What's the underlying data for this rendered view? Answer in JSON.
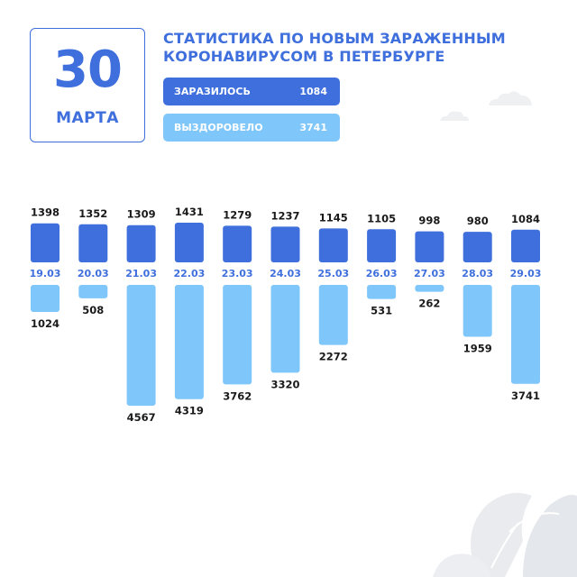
{
  "header": {
    "day": "30",
    "month": "МАРТА",
    "title_line1": "СТАТИСТИКА ПО НОВЫМ ЗАРАЖЕННЫМ",
    "title_line2": "КОРОНАВИРУСОМ В ПЕТЕРБУРГЕ"
  },
  "legend": {
    "infected_label": "ЗАРАЗИЛОСЬ",
    "infected_value": "1084",
    "recovered_label": "ВЫЗДОРОВЕЛО",
    "recovered_value": "3741"
  },
  "colors": {
    "infected": "#3f6fdc",
    "recovered": "#7fc6fa",
    "date_label": "#3f6fdc",
    "value_label": "#1a1a1a"
  },
  "chart_data": {
    "type": "bar",
    "categories": [
      "19.03",
      "20.03",
      "21.03",
      "22.03",
      "23.03",
      "24.03",
      "25.03",
      "26.03",
      "27.03",
      "28.03",
      "29.03"
    ],
    "series": [
      {
        "name": "ЗАРАЗИЛОСЬ",
        "values": [
          1398,
          1352,
          1309,
          1431,
          1279,
          1237,
          1145,
          1105,
          998,
          980,
          1084
        ]
      },
      {
        "name": "ВЫЗДОРОВЕЛО",
        "values": [
          1024,
          508,
          4567,
          4319,
          3762,
          3320,
          2272,
          531,
          262,
          1959,
          3741
        ]
      }
    ],
    "title": "",
    "xlabel": "",
    "ylabel": ""
  }
}
